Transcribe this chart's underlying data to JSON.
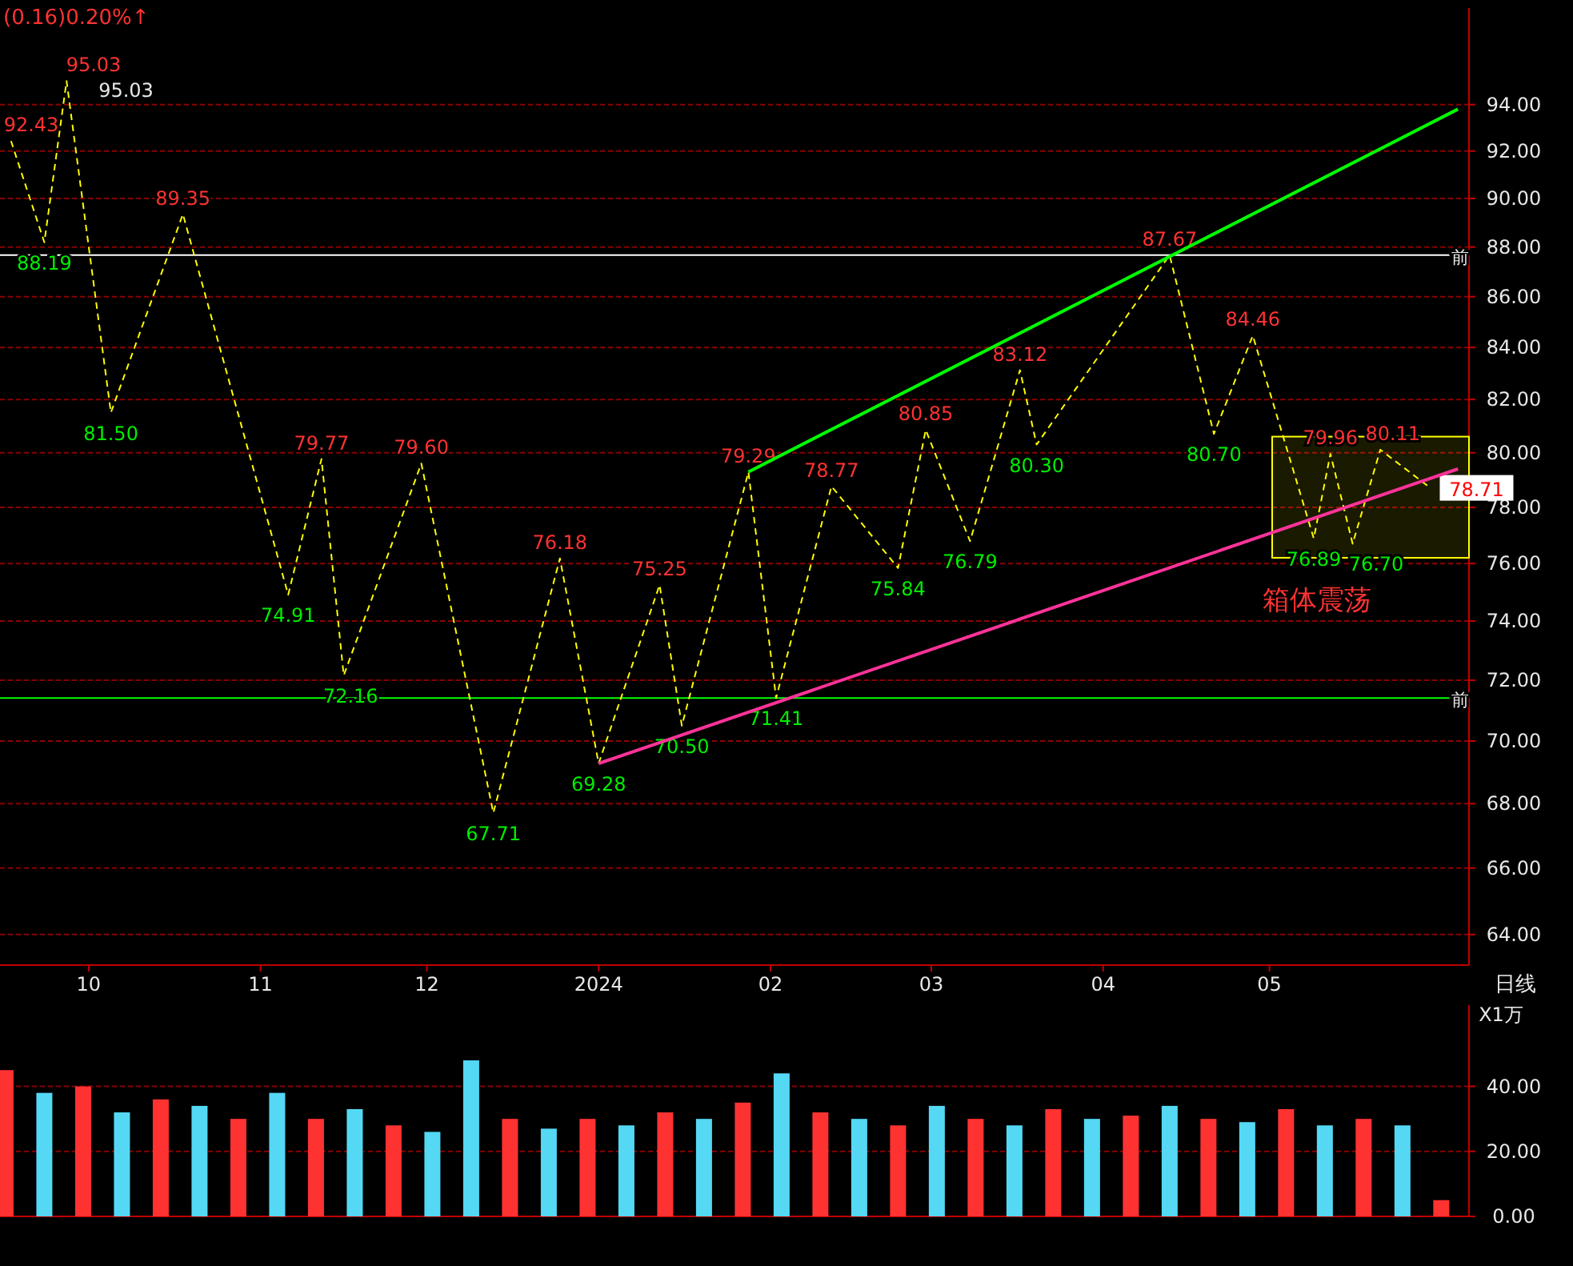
{
  "chart_data": [
    {
      "type": "line",
      "series": [
        {
          "color": "#ffff00",
          "line_style": "dashed",
          "x": [
            "2023-09-17",
            "2023-09-23",
            "2023-09-27",
            "2023-10-05",
            "2023-10-18",
            "2023-11-06",
            "2023-11-12",
            "2023-11-16",
            "2023-11-30",
            "2023-12-13",
            "2023-12-25",
            "2024-01-01",
            "2024-01-12",
            "2024-01-16",
            "2024-01-28",
            "2024-02-02",
            "2024-02-12",
            "2024-02-24",
            "2024-02-29",
            "2024-03-08",
            "2024-03-17",
            "2024-03-20",
            "2024-04-13",
            "2024-04-21",
            "2024-04-28",
            "2024-05-09",
            "2024-05-12",
            "2024-05-16",
            "2024-05-21",
            "2024-05-30"
          ],
          "values": [
            92.43,
            88.19,
            95.03,
            81.5,
            89.35,
            74.91,
            79.77,
            72.16,
            79.6,
            67.71,
            76.18,
            69.28,
            75.25,
            70.5,
            79.29,
            71.41,
            78.77,
            75.84,
            80.85,
            76.79,
            83.12,
            80.3,
            87.67,
            80.7,
            84.46,
            76.89,
            79.96,
            76.7,
            80.11,
            78.71
          ],
          "value_labels": [
            "92.43",
            "88.19",
            "95.03",
            "81.50",
            "89.35",
            "74.91",
            "79.77",
            "72.16",
            "79.60",
            "67.71",
            "76.18",
            "69.28",
            "75.25",
            "70.50",
            "79.29",
            "71.41",
            "78.77",
            "75.84",
            "80.85",
            "76.79",
            "83.12",
            "80.30",
            "87.67",
            "80.70",
            "84.46",
            "76.89",
            "79.96",
            "76.70",
            "80.11",
            "78.71"
          ]
        },
        {
          "color": "#00ff00",
          "line_style": "solid",
          "x": [
            "2024-01-28",
            "2024-06-04"
          ],
          "values": [
            79.29,
            93.8
          ]
        },
        {
          "color": "#ff3399",
          "line_style": "solid",
          "x": [
            "2024-01-01",
            "2024-06-04"
          ],
          "values": [
            69.28,
            79.4
          ]
        }
      ],
      "bands": [
        {
          "axis": "y",
          "from": 76.2,
          "to": 80.6,
          "label": "箱体震荡",
          "color": "#ffff00"
        }
      ],
      "xlim": [
        "2023-09-15",
        "2024-06-06"
      ],
      "xticks": [
        {
          "value": "2023-10-01",
          "label": "10"
        },
        {
          "value": "2023-11-01",
          "label": "11"
        },
        {
          "value": "2023-12-01",
          "label": "12"
        },
        {
          "value": "2024-01-01",
          "label": "2024"
        },
        {
          "value": "2024-02-01",
          "label": "02"
        },
        {
          "value": "2024-03-01",
          "label": "03"
        },
        {
          "value": "2024-04-01",
          "label": "04"
        },
        {
          "value": "2024-05-01",
          "label": "05"
        }
      ],
      "ylim": [
        63.1,
        98.3
      ],
      "log": "y",
      "yticks": [
        {
          "value": 64,
          "label": "64.00"
        },
        {
          "value": 66,
          "label": "66.00"
        },
        {
          "value": 68,
          "label": "68.00"
        },
        {
          "value": 70,
          "label": "70.00"
        },
        {
          "value": 72,
          "label": "72.00"
        },
        {
          "value": 74,
          "label": "74.00"
        },
        {
          "value": 76,
          "label": "76.00"
        },
        {
          "value": 78,
          "label": "78.00"
        },
        {
          "value": 80,
          "label": "80.00"
        },
        {
          "value": 82,
          "label": "82.00"
        },
        {
          "value": 84,
          "label": "84.00"
        },
        {
          "value": 86,
          "label": "86.00"
        },
        {
          "value": 88,
          "label": "88.00"
        },
        {
          "value": 90,
          "label": "90.00"
        },
        {
          "value": 92,
          "label": "92.00"
        },
        {
          "value": 94,
          "label": "94.00"
        }
      ],
      "grid": "y",
      "ref_lines": [
        {
          "axis": "y",
          "value": 87.67,
          "label": "前",
          "color": "#ffffff"
        },
        {
          "axis": "y",
          "value": 71.41,
          "label": "前",
          "color": "#00ff00"
        }
      ],
      "annotations": [
        "(0.16)0.20%↑",
        "日线",
        {
          "text": "95.03",
          "x": "2023-09-27",
          "y": 95.03
        }
      ]
    },
    {
      "type": "bar",
      "tick_labels": "y",
      "grid": "y",
      "ylabel": "X1万",
      "x": [
        "2023-09-16",
        "2023-09-23",
        "2023-09-30",
        "2023-10-07",
        "2023-10-14",
        "2023-10-21",
        "2023-10-28",
        "2023-11-04",
        "2023-11-11",
        "2023-11-18",
        "2023-11-25",
        "2023-12-02",
        "2023-12-09",
        "2023-12-16",
        "2023-12-23",
        "2023-12-30",
        "2024-01-06",
        "2024-01-13",
        "2024-01-20",
        "2024-01-27",
        "2024-02-03",
        "2024-02-10",
        "2024-02-17",
        "2024-02-24",
        "2024-03-02",
        "2024-03-09",
        "2024-03-16",
        "2024-03-23",
        "2024-03-30",
        "2024-04-06",
        "2024-04-13",
        "2024-04-20",
        "2024-04-27",
        "2024-05-04",
        "2024-05-11",
        "2024-05-18",
        "2024-05-25",
        "2024-06-01"
      ],
      "values": [
        45,
        38,
        40,
        32,
        36,
        34,
        30,
        38,
        30,
        33,
        28,
        26,
        48,
        30,
        27,
        30,
        28,
        32,
        30,
        35,
        44,
        32,
        30,
        28,
        34,
        30,
        28,
        33,
        30,
        31,
        34,
        30,
        29,
        33,
        28,
        30,
        28,
        5
      ],
      "colors": [
        "#ff3232",
        "#54d8f4",
        "#ff3232",
        "#54d8f4",
        "#ff3232",
        "#54d8f4",
        "#ff3232",
        "#54d8f4",
        "#ff3232",
        "#54d8f4",
        "#ff3232",
        "#54d8f4",
        "#54d8f4",
        "#ff3232",
        "#54d8f4",
        "#ff3232",
        "#54d8f4",
        "#ff3232",
        "#54d8f4",
        "#ff3232",
        "#54d8f4",
        "#ff3232",
        "#54d8f4",
        "#ff3232",
        "#54d8f4",
        "#ff3232",
        "#54d8f4",
        "#ff3232",
        "#54d8f4",
        "#ff3232",
        "#54d8f4",
        "#ff3232",
        "#54d8f4",
        "#ff3232",
        "#54d8f4",
        "#ff3232",
        "#54d8f4",
        "#ff3232"
      ],
      "xlim": [
        "2023-09-15",
        "2024-06-06"
      ],
      "ylim": [
        0,
        65
      ],
      "yticks": [
        {
          "value": 0,
          "label": "0.00"
        },
        {
          "value": 20,
          "label": "20.00"
        },
        {
          "value": 40,
          "label": "40.00"
        }
      ]
    }
  ]
}
